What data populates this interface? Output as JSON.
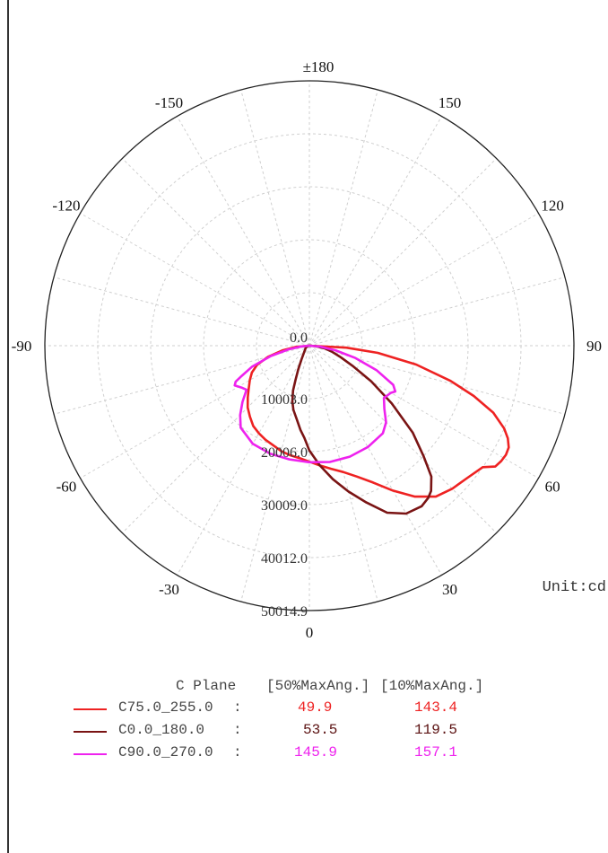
{
  "chart_data": {
    "type": "polar",
    "unit_label": "Unit:cd",
    "angle_labels": [
      {
        "deg": 0,
        "text": "0"
      },
      {
        "deg": 30,
        "text": "30"
      },
      {
        "deg": 60,
        "text": "60"
      },
      {
        "deg": 90,
        "text": "90"
      },
      {
        "deg": 120,
        "text": "120"
      },
      {
        "deg": 150,
        "text": "150"
      },
      {
        "deg": 180,
        "text": "±180"
      },
      {
        "deg": -30,
        "text": "-30"
      },
      {
        "deg": -60,
        "text": "-60"
      },
      {
        "deg": -90,
        "text": "-90"
      },
      {
        "deg": -120,
        "text": "-120"
      },
      {
        "deg": -150,
        "text": "-150"
      }
    ],
    "radial_ticks": [
      {
        "value": 0.0,
        "text": "0.0"
      },
      {
        "value": 10003.0,
        "text": "10003.0"
      },
      {
        "value": 20006.0,
        "text": "20006.0"
      },
      {
        "value": 30009.0,
        "text": "30009.0"
      },
      {
        "value": 40012.0,
        "text": "40012.0"
      },
      {
        "value": 50014.9,
        "text": "50014.9"
      }
    ],
    "rmax": 50014.9,
    "grid": true,
    "series": [
      {
        "name": "C75.0_255.0",
        "color": "#ee2222",
        "points": [
          [
            -90,
            0
          ],
          [
            -85,
            2500
          ],
          [
            -80,
            5200
          ],
          [
            -75,
            8100
          ],
          [
            -70,
            10500
          ],
          [
            -65,
            12000
          ],
          [
            -60,
            13000
          ],
          [
            -55,
            14000
          ],
          [
            -50,
            15200
          ],
          [
            -45,
            16500
          ],
          [
            -40,
            17500
          ],
          [
            -35,
            18500
          ],
          [
            -30,
            19100
          ],
          [
            -25,
            19600
          ],
          [
            -20,
            20000
          ],
          [
            -15,
            20600
          ],
          [
            -10,
            21000
          ],
          [
            -5,
            21300
          ],
          [
            0,
            21900
          ],
          [
            5,
            22700
          ],
          [
            10,
            23600
          ],
          [
            15,
            24700
          ],
          [
            20,
            26300
          ],
          [
            25,
            28500
          ],
          [
            30,
            31600
          ],
          [
            35,
            34800
          ],
          [
            40,
            37200
          ],
          [
            45,
            38200
          ],
          [
            50,
            38900
          ],
          [
            55,
            40000
          ],
          [
            57,
            41900
          ],
          [
            59,
            42300
          ],
          [
            61,
            42500
          ],
          [
            63,
            42300
          ],
          [
            65,
            41400
          ],
          [
            67,
            40000
          ],
          [
            70,
            37000
          ],
          [
            73,
            32500
          ],
          [
            76,
            27500
          ],
          [
            80,
            20500
          ],
          [
            84,
            13000
          ],
          [
            87,
            7000
          ],
          [
            90,
            0
          ]
        ]
      },
      {
        "name": "C0.0_180.0",
        "color": "#7a1414",
        "points": [
          [
            -90,
            0
          ],
          [
            -80,
            300
          ],
          [
            -60,
            800
          ],
          [
            -40,
            1500
          ],
          [
            -30,
            3000
          ],
          [
            -25,
            5000
          ],
          [
            -22,
            7000
          ],
          [
            -20,
            9000
          ],
          [
            -17,
            11000
          ],
          [
            -14,
            12500
          ],
          [
            -10,
            14000
          ],
          [
            -6,
            16000
          ],
          [
            -3,
            17500
          ],
          [
            0,
            19800
          ],
          [
            5,
            22700
          ],
          [
            10,
            25600
          ],
          [
            15,
            28500
          ],
          [
            20,
            31500
          ],
          [
            25,
            34800
          ],
          [
            30,
            36600
          ],
          [
            35,
            37000
          ],
          [
            38,
            36500
          ],
          [
            40,
            35800
          ],
          [
            43,
            33800
          ],
          [
            46,
            30000
          ],
          [
            50,
            25500
          ],
          [
            55,
            19000
          ],
          [
            60,
            13500
          ],
          [
            65,
            9000
          ],
          [
            70,
            6200
          ],
          [
            75,
            4400
          ],
          [
            80,
            3000
          ],
          [
            85,
            1400
          ],
          [
            90,
            0
          ]
        ]
      },
      {
        "name": "C90.0_270.0",
        "color": "#ee22ee",
        "points": [
          [
            -90,
            0
          ],
          [
            -85,
            1500
          ],
          [
            -80,
            4000
          ],
          [
            -75,
            7500
          ],
          [
            -70,
            11500
          ],
          [
            -66,
            14000
          ],
          [
            -64,
            15500
          ],
          [
            -62,
            16000
          ],
          [
            -58,
            15000
          ],
          [
            -55,
            14500
          ],
          [
            -50,
            16500
          ],
          [
            -45,
            18500
          ],
          [
            -40,
            20200
          ],
          [
            -30,
            21400
          ],
          [
            -20,
            21700
          ],
          [
            -10,
            21800
          ],
          [
            0,
            22000
          ],
          [
            10,
            22300
          ],
          [
            20,
            22300
          ],
          [
            30,
            22100
          ],
          [
            40,
            21600
          ],
          [
            45,
            20500
          ],
          [
            50,
            18500
          ],
          [
            55,
            17200
          ],
          [
            60,
            17800
          ],
          [
            62,
            18400
          ],
          [
            65,
            17500
          ],
          [
            70,
            13500
          ],
          [
            75,
            9000
          ],
          [
            80,
            5000
          ],
          [
            85,
            2000
          ],
          [
            90,
            0
          ]
        ]
      }
    ]
  },
  "legend": {
    "header": {
      "c_plane": "C Plane",
      "col50": "[50%MaxAng.]",
      "col10": "[10%MaxAng.]"
    },
    "rows": [
      {
        "name": "C75.0_255.0",
        "sep": ":",
        "v50": "49.9",
        "v10": "143.4",
        "color": "#ee2222"
      },
      {
        "name": "C0.0_180.0",
        "sep": ":",
        "v50": "53.5",
        "v10": "119.5",
        "color": "#7a1414"
      },
      {
        "name": "C90.0_270.0",
        "sep": ":",
        "v50": "145.9",
        "v10": "157.1",
        "color": "#ee22ee"
      }
    ]
  }
}
